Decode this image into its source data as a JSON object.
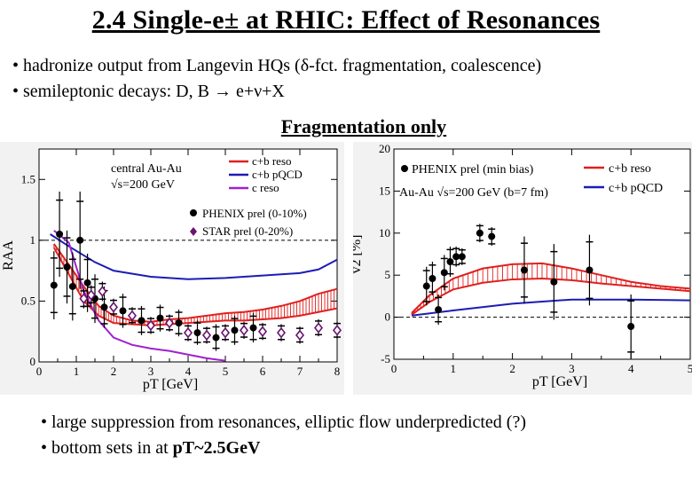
{
  "title": "2.4 Single-e± at RHIC: Effect of Resonances",
  "bullets_top": [
    "• hadronize output from Langevin HQs (δ-fct. fragmentation, coalescence)",
    "• semileptonic decays:  D, B → e+ν+X"
  ],
  "subtitle": "Fragmentation only",
  "bullets_bottom": [
    "• large suppression from resonances, elliptic flow underpredicted (?)",
    {
      "text": "• bottom sets in at ",
      "bold": "pT~2.5GeV"
    }
  ],
  "colors": {
    "red": "#e0201e",
    "blue": "#1c1cb4",
    "purple": "#a020d0",
    "marker_purple": "#6a1470"
  },
  "chart_data": [
    {
      "type": "line",
      "name": "R_AA",
      "ylabel": "RAA",
      "xlabel": "pT [GeV]",
      "xlim": [
        0,
        8
      ],
      "ylim": [
        0,
        1.75
      ],
      "xticks": [
        "0",
        "1",
        "2",
        "3",
        "4",
        "5",
        "6",
        "7",
        "8"
      ],
      "yticks": [
        "0",
        "0.5",
        "1",
        "1.5"
      ],
      "annotation": [
        "central Au-Au",
        "√s=200 GeV"
      ],
      "legend": {
        "position": "top-right",
        "entries": [
          "c+b reso",
          "c+b pQCD",
          "c reso",
          "PHENIX prel (0-10%)",
          "STAR prel (0-20%)"
        ]
      },
      "series": [
        {
          "name": "c+b reso",
          "color": "red",
          "style": "band",
          "x": [
            0.4,
            0.8,
            1.2,
            1.6,
            2.0,
            2.5,
            3.0,
            3.5,
            4.0,
            4.5,
            5.0,
            5.5,
            6.0,
            6.5,
            7.0,
            7.5,
            8.0
          ],
          "upper": [
            0.97,
            0.8,
            0.62,
            0.46,
            0.38,
            0.34,
            0.33,
            0.35,
            0.36,
            0.38,
            0.4,
            0.41,
            0.43,
            0.46,
            0.5,
            0.56,
            0.6
          ],
          "lower": [
            0.94,
            0.72,
            0.5,
            0.38,
            0.32,
            0.31,
            0.3,
            0.31,
            0.32,
            0.33,
            0.34,
            0.34,
            0.35,
            0.36,
            0.38,
            0.41,
            0.44
          ]
        },
        {
          "name": "c+b pQCD",
          "color": "blue",
          "x": [
            0.3,
            0.8,
            1.5,
            2.0,
            3.0,
            4.0,
            5.0,
            6.0,
            7.0,
            7.5,
            8.0
          ],
          "y": [
            1.05,
            0.95,
            0.82,
            0.75,
            0.7,
            0.68,
            0.69,
            0.71,
            0.73,
            0.76,
            0.84
          ]
        },
        {
          "name": "c reso",
          "color": "purple",
          "x": [
            0.4,
            0.8,
            1.2,
            1.6,
            2.0,
            2.5,
            3.0,
            3.5,
            4.0,
            4.5,
            5.0
          ],
          "y": [
            1.08,
            0.98,
            0.58,
            0.34,
            0.2,
            0.14,
            0.11,
            0.09,
            0.06,
            0.03,
            0.01
          ]
        },
        {
          "name": "PHENIX prel (0-10%)",
          "marker": "circle",
          "x": [
            0.4,
            0.55,
            0.75,
            0.9,
            1.1,
            1.3,
            1.5,
            1.75,
            2.25,
            2.75,
            3.25,
            3.75,
            4.25,
            4.75,
            5.25,
            5.75
          ],
          "y": [
            0.63,
            1.05,
            0.78,
            0.62,
            1.0,
            0.65,
            0.52,
            0.45,
            0.42,
            0.34,
            0.36,
            0.32,
            0.24,
            0.2,
            0.26,
            0.28
          ],
          "err": [
            0.28,
            0.35,
            0.3,
            0.28,
            0.4,
            0.24,
            0.2,
            0.17,
            0.14,
            0.12,
            0.11,
            0.11,
            0.1,
            0.11,
            0.12,
            0.12
          ]
        },
        {
          "name": "STAR prel (0-20%)",
          "marker": "diamond",
          "x": [
            1.2,
            1.4,
            1.7,
            2.0,
            2.5,
            3.0,
            3.5,
            4.0,
            4.5,
            5.0,
            5.5,
            6.0,
            6.5,
            7.0,
            7.5,
            8.0
          ],
          "y": [
            0.52,
            0.55,
            0.58,
            0.45,
            0.38,
            0.3,
            0.32,
            0.24,
            0.22,
            0.24,
            0.26,
            0.25,
            0.24,
            0.22,
            0.28,
            0.26
          ],
          "err": [
            0.08,
            0.08,
            0.08,
            0.07,
            0.07,
            0.07,
            0.07,
            0.07,
            0.07,
            0.07,
            0.07,
            0.07,
            0.07,
            0.07,
            0.07,
            0.07
          ]
        }
      ]
    },
    {
      "type": "line",
      "name": "v2",
      "ylabel": "v2 [%]",
      "xlabel": "pT [GeV]",
      "xlim": [
        0,
        5
      ],
      "ylim": [
        -5,
        20
      ],
      "xticks": [
        "0",
        "1",
        "2",
        "3",
        "4",
        "5"
      ],
      "yticks": [
        "-5",
        "0",
        "5",
        "10",
        "15",
        "20"
      ],
      "annotation": [
        "Au-Au √s=200 GeV (b=7 fm)"
      ],
      "legend": {
        "position": "top",
        "entries": [
          "PHENIX prel (min bias)",
          "c+b reso",
          "c+b pQCD"
        ]
      },
      "series": [
        {
          "name": "c+b reso",
          "color": "red",
          "style": "band",
          "x": [
            0.3,
            0.6,
            1.0,
            1.5,
            2.0,
            2.5,
            3.0,
            3.5,
            4.0,
            4.5,
            5.0
          ],
          "upper": [
            0.5,
            2.6,
            4.6,
            5.8,
            6.3,
            6.4,
            5.8,
            5.0,
            4.2,
            3.7,
            3.4
          ],
          "lower": [
            0.3,
            1.8,
            3.3,
            4.1,
            4.5,
            4.6,
            4.4,
            4.0,
            3.7,
            3.4,
            3.1
          ]
        },
        {
          "name": "c+b pQCD",
          "color": "blue",
          "x": [
            0.3,
            1.0,
            2.0,
            3.0,
            4.0,
            5.0
          ],
          "y": [
            0.2,
            0.8,
            1.6,
            2.1,
            2.1,
            2.0
          ]
        },
        {
          "name": "PHENIX prel (min bias)",
          "marker": "circle",
          "x": [
            0.55,
            0.65,
            0.75,
            0.85,
            0.95,
            1.05,
            1.15,
            1.45,
            1.65,
            2.2,
            2.7,
            3.3,
            4.0
          ],
          "y": [
            3.7,
            4.6,
            0.9,
            5.3,
            6.6,
            7.2,
            7.2,
            10.0,
            9.6,
            5.6,
            4.2,
            5.6,
            -1.1
          ],
          "err": [
            2.3,
            2.0,
            1.8,
            2.1,
            1.8,
            1.2,
            1.0,
            1.1,
            1.1,
            4.0,
            4.5,
            4.2,
            3.8
          ]
        }
      ]
    }
  ]
}
